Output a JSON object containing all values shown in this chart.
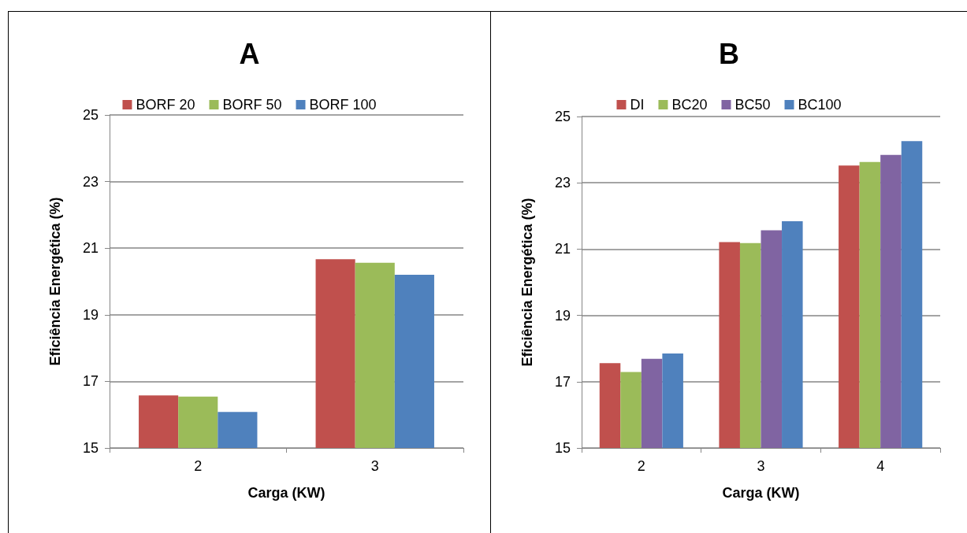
{
  "chart_data": [
    {
      "type": "bar",
      "title": "A",
      "xlabel": "Carga (KW)",
      "ylabel": "Eficiência Energética (%)",
      "categories": [
        "2",
        "3"
      ],
      "series": [
        {
          "name": "BORF 20",
          "color": "#c0504d",
          "values": [
            16.58,
            20.67
          ]
        },
        {
          "name": "BORF 50",
          "color": "#9bbb59",
          "values": [
            16.54,
            20.56
          ]
        },
        {
          "name": "BORF 100",
          "color": "#4f81bd",
          "values": [
            16.08,
            20.2
          ]
        }
      ],
      "ylim": [
        15,
        25
      ],
      "yticks": [
        15,
        17,
        19,
        21,
        23,
        25
      ],
      "grid": "y",
      "legend": "top"
    },
    {
      "type": "bar",
      "title": "B",
      "xlabel": "Carga (KW)",
      "ylabel": "Eficiência Energética (%)",
      "categories": [
        "2",
        "3",
        "4"
      ],
      "series": [
        {
          "name": "DI",
          "color": "#c0504d",
          "values": [
            17.56,
            21.21,
            23.52
          ]
        },
        {
          "name": "BC20",
          "color": "#9bbb59",
          "values": [
            17.29,
            21.18,
            23.63
          ]
        },
        {
          "name": "BC50",
          "color": "#8064a2",
          "values": [
            17.69,
            21.57,
            23.84
          ]
        },
        {
          "name": "BC100",
          "color": "#4f81bd",
          "values": [
            17.85,
            21.84,
            24.26
          ]
        }
      ],
      "ylim": [
        15,
        25
      ],
      "yticks": [
        15,
        17,
        19,
        21,
        23,
        25
      ],
      "grid": "y",
      "legend": "top"
    }
  ]
}
